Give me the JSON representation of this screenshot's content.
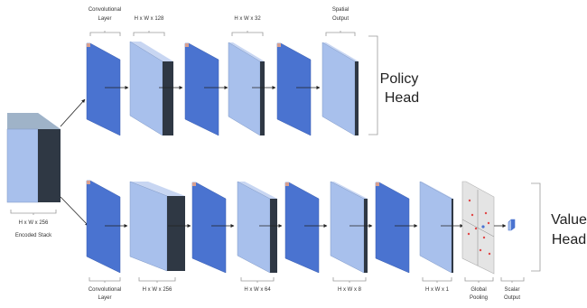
{
  "colors": {
    "dark_blue": "#4a73d0",
    "light_blue": "#a8c0ec",
    "side_dark": "#2f3844",
    "top_light": "#c8d6f2",
    "pooling_panel": "#e4e4e4",
    "pooling_dots": "#e04848",
    "arrow": "#222222",
    "bracket": "#9a9a9a"
  },
  "input": {
    "shape_label": "H x W x 256",
    "name_label": "Encoded Stack"
  },
  "policy": {
    "title_line1": "Policy",
    "title_line2": "Head",
    "labels": {
      "conv_line1": "Convolutional",
      "conv_line2": "Layer",
      "shape_a": "H x W x 128",
      "shape_b": "H x W x 32",
      "out_line1": "Spatial",
      "out_line2": "Output"
    }
  },
  "value": {
    "title_line1": "Value",
    "title_line2": "Head",
    "labels": {
      "conv_line1": "Convolutional",
      "conv_line2": "Layer",
      "shape_a": "H x W x 256",
      "shape_b": "H x W x 64",
      "shape_c": "H x W x 8",
      "shape_d": "H x W x 1",
      "pool_line1": "Global",
      "pool_line2": "Pooling",
      "out_line1": "Scalar",
      "out_line2": "Output"
    }
  }
}
